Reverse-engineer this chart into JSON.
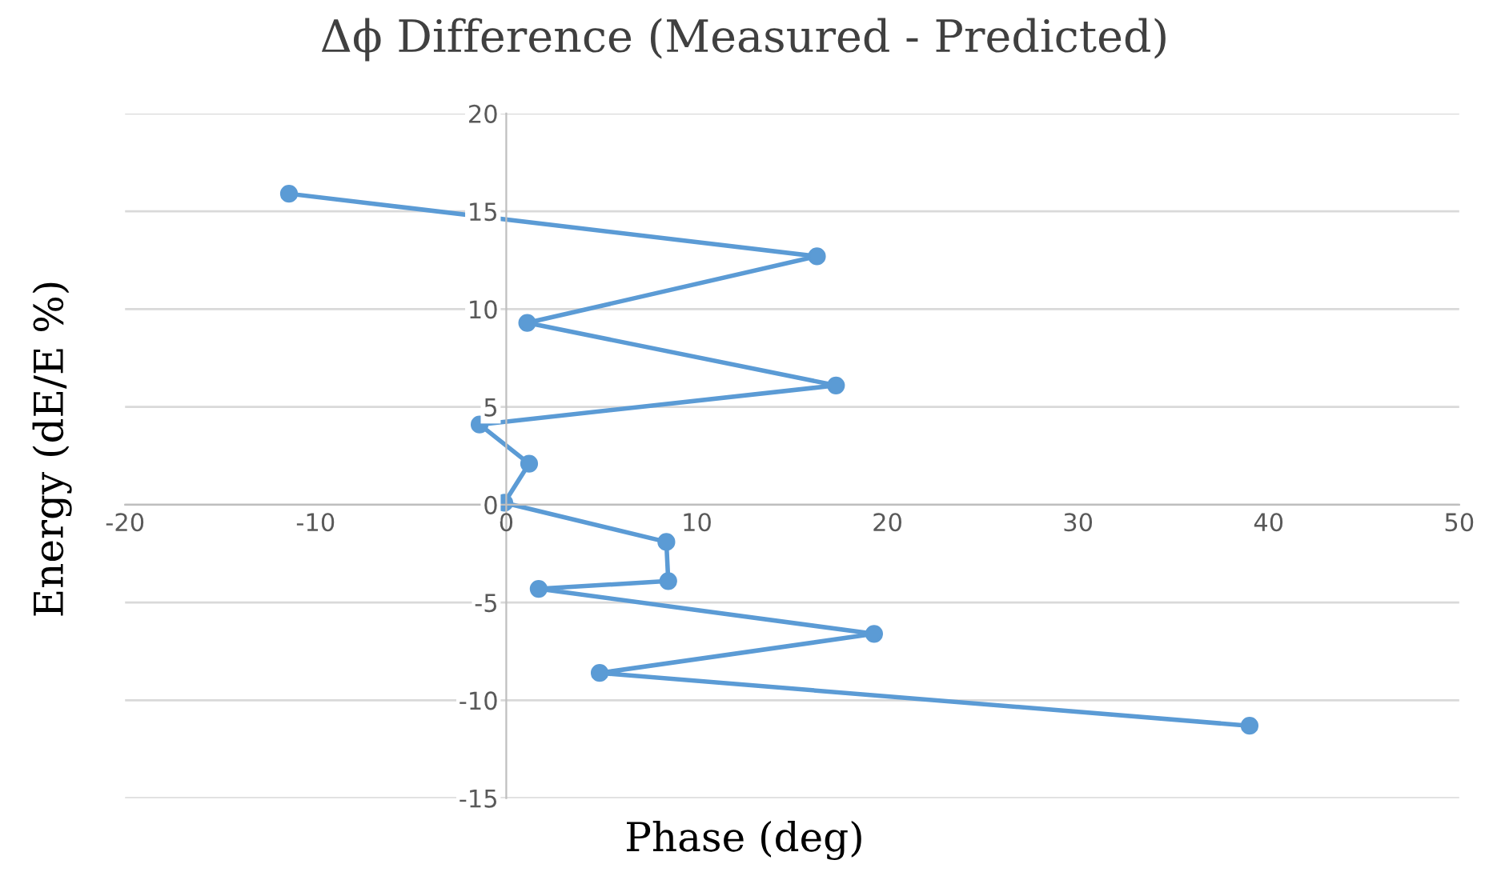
{
  "chart_data": {
    "type": "line",
    "title": "Δϕ Difference (Measured - Predicted)",
    "xlabel": "Phase (deg)",
    "ylabel": "Energy (dE/E %)",
    "series": [
      {
        "color": "#5b9bd5",
        "x": [
          -11.4,
          16.3,
          1.1,
          17.3,
          -1.4,
          1.2,
          -0.1,
          8.4,
          8.5,
          1.7,
          19.3,
          4.9,
          39.0
        ],
        "values": [
          15.9,
          12.7,
          9.3,
          6.1,
          4.1,
          2.1,
          0.1,
          -1.9,
          -3.9,
          -4.3,
          -6.6,
          -8.6,
          -11.3
        ]
      }
    ],
    "xlim": [
      -20,
      50
    ],
    "xticks": [
      -20,
      -10,
      0,
      10,
      20,
      30,
      40,
      50
    ],
    "ylim": [
      -15,
      20
    ],
    "yticks": [
      -15,
      -10,
      -5,
      0,
      5,
      10,
      15,
      20
    ],
    "grid": "y",
    "marker": "circle",
    "line_style": "solid",
    "legend": false
  }
}
